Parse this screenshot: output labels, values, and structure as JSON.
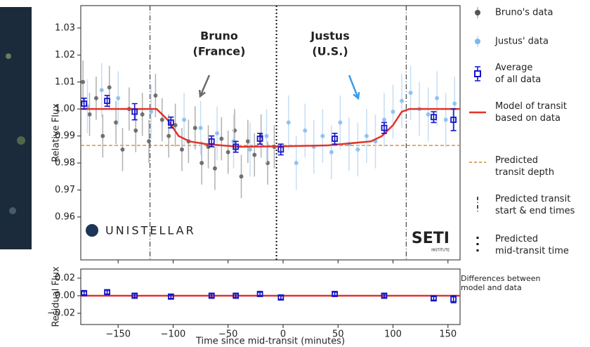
{
  "chart_data": [
    {
      "type": "scatter",
      "ylabel": "Relative Flux",
      "xlim": [
        -184,
        161
      ],
      "ylim": [
        0.9441,
        1.0383
      ],
      "xticks": [
        -150,
        -100,
        -50,
        0,
        50,
        100,
        150
      ],
      "yticks": [
        0.96,
        0.97,
        0.98,
        0.99,
        {
          "value": 1,
          "label": "1.00"
        },
        1.01,
        1.02,
        1.03
      ],
      "series": [
        {
          "name": [
            "Bruno's data"
          ],
          "color": "#555555",
          "error_color": "#b0b0b0",
          "marker": "circle",
          "error": 0.008,
          "x": [
            -182,
            -176,
            -170,
            -164,
            -158,
            -152,
            -146,
            -140,
            -134,
            -128,
            -122,
            -116,
            -110,
            -104,
            -98,
            -92,
            -86,
            -80,
            -74,
            -68,
            -62,
            -56,
            -50,
            -44,
            -38,
            -32,
            -26,
            -20,
            -14,
            -8
          ],
          "y": [
            1.01,
            0.998,
            1.004,
            0.99,
            1.008,
            0.995,
            0.985,
            1.0,
            0.992,
            0.998,
            0.988,
            1.005,
            0.996,
            0.99,
            0.994,
            0.985,
            0.988,
            0.993,
            0.98,
            0.986,
            0.978,
            0.989,
            0.984,
            0.992,
            0.975,
            0.988,
            0.983,
            0.99,
            0.98,
            0.986
          ]
        },
        {
          "name": [
            "Justus' data"
          ],
          "color": "#7ab8ef",
          "error_color": "#c6def5",
          "marker": "circle",
          "error": 0.01,
          "x": [
            -178,
            -150,
            -120,
            -90,
            -60,
            -30,
            -15,
            5,
            12,
            20,
            28,
            36,
            44,
            52,
            60,
            68,
            76,
            84,
            92,
            100,
            108,
            116,
            124,
            132,
            140,
            148,
            156,
            -165,
            -75,
            -45
          ],
          "y": [
            1.001,
            1.004,
            0.999,
            0.996,
            0.991,
            0.985,
            0.99,
            0.995,
            0.98,
            0.992,
            0.986,
            0.99,
            0.984,
            0.995,
            0.987,
            0.985,
            0.99,
            0.988,
            0.996,
            0.999,
            1.003,
            1.006,
            1.0,
            0.998,
            1.004,
            0.996,
            1.002,
            1.007,
            0.993,
            0.988
          ]
        },
        {
          "name": [
            "Average",
            "of all data"
          ],
          "color": "#1414c8",
          "marker": "square",
          "x": [
            -181,
            -160,
            -135,
            -102,
            -65,
            -43,
            -21,
            -2,
            47,
            92,
            137,
            155
          ],
          "y": [
            1.002,
            1.003,
            0.999,
            0.995,
            0.988,
            0.986,
            0.989,
            0.985,
            0.989,
            0.993,
            0.997,
            0.996
          ],
          "errors": [
            0.002,
            0.002,
            0.003,
            0.002,
            0.002,
            0.002,
            0.002,
            0.002,
            0.002,
            0.002,
            0.002,
            0.004
          ]
        }
      ],
      "model": {
        "name": [
          "Model of transit",
          "based on data"
        ],
        "color": "#e0342b",
        "x": [
          -184,
          -115,
          -105,
          -95,
          -85,
          -70,
          -40,
          0,
          40,
          80,
          90,
          100,
          108,
          115,
          161
        ],
        "y": [
          1.0,
          1.0,
          0.996,
          0.99,
          0.988,
          0.987,
          0.986,
          0.9862,
          0.9865,
          0.988,
          0.99,
          0.994,
          0.999,
          1.0,
          1.0
        ]
      },
      "depth": {
        "name": [
          "Predicted",
          "transit depth"
        ],
        "color": "#d08a2a",
        "value": 0.9865
      },
      "transit_edges": {
        "name": [
          "Predicted transit",
          "start & end times"
        ],
        "values": [
          -121,
          112
        ]
      },
      "mid_transit": {
        "name": [
          "Predicted",
          "mid-transit time"
        ],
        "value": -6
      },
      "annotations": [
        {
          "lines": [
            "Bruno",
            "(France)"
          ],
          "color": "#6b6b6b"
        },
        {
          "lines": [
            "Justus",
            "(U.S.)"
          ],
          "color": "#3d9be9"
        }
      ],
      "logos": [
        "UNISTELLAR",
        "SETI",
        "INSTITUTE"
      ]
    },
    {
      "type": "scatter",
      "ylabel": "Residual Flux",
      "xlabel": "Time since mid-transit (minutes)",
      "xlim": [
        -184,
        161
      ],
      "ylim": [
        -0.0328,
        0.0304
      ],
      "xticks": [
        {
          "value": -150,
          "label": "−150"
        },
        {
          "value": -100,
          "label": "−100"
        },
        {
          "value": -50,
          "label": "−50"
        },
        0,
        50,
        100,
        150
      ],
      "yticks": [
        {
          "value": -0.02,
          "label": "−0.02"
        },
        {
          "value": 0,
          "label": "0.00"
        },
        0.02
      ],
      "series": [
        {
          "color": "#1414c8",
          "marker": "square",
          "x": [
            -181,
            -160,
            -135,
            -102,
            -65,
            -43,
            -21,
            -2,
            47,
            92,
            137,
            155
          ],
          "y": [
            0.003,
            0.004,
            0.0,
            -0.001,
            0,
            0,
            0.002,
            -0.002,
            0.002,
            0,
            -0.003,
            -0.004
          ],
          "errors": [
            0.002,
            0.002,
            0.002,
            0.002,
            0.002,
            0.002,
            0.002,
            0.002,
            0.002,
            0.002,
            0.002,
            0.004
          ]
        }
      ],
      "model": {
        "color": "#e0342b",
        "x": [
          -184,
          161
        ],
        "y": [
          0,
          0
        ]
      },
      "note": [
        "Differences between",
        "model and data"
      ]
    }
  ]
}
